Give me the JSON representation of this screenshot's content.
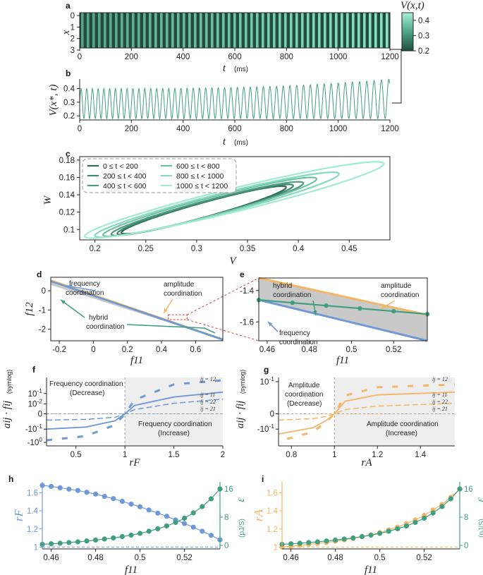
{
  "colors": {
    "green": "#3f9e7f",
    "blue": "#6f98d6",
    "orange": "#f5b566",
    "grey": "#c9c9c9",
    "red": "#e0393e"
  },
  "chart_data": [
    {
      "id": "a",
      "type": "heatmap",
      "panel_label": "a",
      "xlabel_sym": "t",
      "xlabel_unit": "(ms)",
      "ylabel": "x",
      "x_ticks": [
        "0",
        "200",
        "400",
        "600",
        "800",
        "1000",
        "1200"
      ],
      "y_ticks": [
        "0",
        "1",
        "2",
        "3"
      ],
      "colorbar_title": "V(x,t)",
      "colorbar_ticks": [
        "0.4",
        "0.3",
        "0.2"
      ],
      "xlim": [
        0,
        1200
      ],
      "ylim": [
        0,
        3
      ],
      "clim": [
        0.2,
        0.45
      ],
      "oscillation_cycles": 55
    },
    {
      "id": "b",
      "type": "line",
      "panel_label": "b",
      "xlabel_sym": "t",
      "xlabel_unit": "(ms)",
      "ylabel": "V(x*, t)",
      "x_ticks": [
        "0",
        "200",
        "400",
        "600",
        "800",
        "1000",
        "1200"
      ],
      "y_ticks": [
        "0.4",
        "0.3",
        "0.2"
      ],
      "xlim": [
        0,
        1200
      ],
      "ylim": [
        0.2,
        0.45
      ],
      "series": [
        {
          "name": "V(x*,t)",
          "cycles": 55,
          "min": 0.18,
          "max_start": 0.4,
          "max_end": 0.47
        }
      ]
    },
    {
      "id": "c",
      "type": "line",
      "panel_label": "c",
      "xlabel": "V",
      "ylabel": "W",
      "x_ticks": [
        "0.2",
        "0.25",
        "0.3",
        "0.35",
        "0.4",
        "0.45"
      ],
      "y_ticks": [
        "0.18",
        "0.16",
        "0.14",
        "0.12",
        "0.1"
      ],
      "xlim": [
        0.185,
        0.49
      ],
      "ylim": [
        0.088,
        0.184
      ],
      "legend": [
        "0 ≤ t < 200",
        "200 ≤ t < 400",
        "400 ≤ t < 600",
        "600 ≤ t < 800",
        "800 ≤ t < 1000",
        "1000 ≤ t < 1200"
      ],
      "series": [
        {
          "name": "0 ≤ t < 200",
          "color": "#2f6b55",
          "v_min": 0.226,
          "v_max": 0.388,
          "w_min": 0.095,
          "w_max": 0.15
        },
        {
          "name": "200 ≤ t < 400",
          "color": "#3f8a6c",
          "v_min": 0.222,
          "v_max": 0.395,
          "w_min": 0.094,
          "w_max": 0.152
        },
        {
          "name": "400 ≤ t < 600",
          "color": "#4f9b7c",
          "v_min": 0.216,
          "v_max": 0.405,
          "w_min": 0.093,
          "w_max": 0.155
        },
        {
          "name": "600 ≤ t < 800",
          "color": "#6cc2a2",
          "v_min": 0.208,
          "v_max": 0.418,
          "w_min": 0.092,
          "w_max": 0.16
        },
        {
          "name": "800 ≤ t < 1000",
          "color": "#86d9bb",
          "v_min": 0.2,
          "v_max": 0.44,
          "w_min": 0.091,
          "w_max": 0.166
        },
        {
          "name": "1000 ≤ t < 1200",
          "color": "#a0ecd0",
          "v_min": 0.19,
          "v_max": 0.484,
          "w_min": 0.09,
          "w_max": 0.178
        }
      ]
    },
    {
      "id": "d",
      "type": "line",
      "panel_label": "d",
      "xlabel": "f11",
      "ylabel": "f12",
      "x_ticks": [
        "-0.2",
        "0",
        "0.2",
        "0.4",
        "0.6"
      ],
      "y_ticks": [
        "0",
        "-1",
        "-2"
      ],
      "xlim": [
        -0.25,
        0.76
      ],
      "ylim": [
        -2.6,
        0.7
      ],
      "annotations": [
        "frequency coordination",
        "amplitude coordination",
        "hybrid coordination"
      ],
      "series": [
        {
          "name": "frequency",
          "x": [
            -0.25,
            0.76
          ],
          "y": [
            0.5,
            -2.55
          ]
        },
        {
          "name": "amplitude",
          "x": [
            -0.25,
            0.76
          ],
          "y": [
            0.55,
            -2.52
          ]
        },
        {
          "name": "hybrid",
          "x": [
            -0.25,
            0.76
          ],
          "y": [
            0.5,
            -2.53
          ]
        }
      ]
    },
    {
      "id": "e",
      "type": "line",
      "panel_label": "e",
      "xlabel": "f11",
      "ylabel": "",
      "x_ticks": [
        "0.46",
        "0.48",
        "0.5",
        "0.52"
      ],
      "y_ticks": [
        "-1.4",
        "-1.6"
      ],
      "xlim": [
        0.456,
        0.536
      ],
      "ylim": [
        -1.72,
        -1.32
      ],
      "annotations": [
        "hybrid coordination",
        "amplitude coordination",
        "frequency coordination"
      ],
      "series": [
        {
          "name": "amplitude",
          "x": [
            0.456,
            0.536
          ],
          "y": [
            -1.32,
            -1.555
          ]
        },
        {
          "name": "frequency",
          "x": [
            0.456,
            0.536
          ],
          "y": [
            -1.46,
            -1.72
          ]
        },
        {
          "name": "hybrid",
          "x": [
            0.456,
            0.472,
            0.488,
            0.504,
            0.52,
            0.536
          ],
          "y": [
            -1.46,
            -1.478,
            -1.496,
            -1.514,
            -1.532,
            -1.55
          ]
        }
      ]
    },
    {
      "id": "f",
      "type": "line",
      "panel_label": "f",
      "xlabel": "rF",
      "ylabel": "aij · fij",
      "ylabel_note": "(symlog)",
      "x_ticks": [
        "0.5",
        "1",
        "1.5",
        "2"
      ],
      "y_ticks": [
        "10^-1",
        "10^-2",
        "0",
        "-10^-1",
        "-10^0"
      ],
      "xlim": [
        0.2,
        2.0
      ],
      "annotations": [
        "Frequency coordination (Decrease)",
        "Frequency coordination (Increase)"
      ],
      "ij_labels": [
        "ij = 12",
        "ij = 11",
        "ij = 22",
        "ij = 21"
      ],
      "series": [
        {
          "name": "ij = 12",
          "style": "dash-bold",
          "x": [
            0.2,
            0.6,
            0.9,
            1.0,
            1.1,
            1.5,
            2.0
          ],
          "y_symlog": [
            -1.9,
            -1.6,
            -0.8,
            0,
            1.0,
            2.1,
            2.4
          ]
        },
        {
          "name": "ij = 11",
          "style": "solid",
          "x": [
            0.2,
            0.6,
            0.9,
            1.0,
            1.1,
            1.5,
            2.0
          ],
          "y_symlog": [
            -1.1,
            -0.95,
            -0.5,
            0,
            0.6,
            1.2,
            1.55
          ]
        },
        {
          "name": "ij = 22",
          "style": "dash",
          "x": [
            0.2,
            0.6,
            0.9,
            1.0,
            1.1,
            1.5,
            2.0
          ],
          "y_symlog": [
            -0.45,
            -0.4,
            -0.25,
            0,
            0.3,
            0.75,
            1.05
          ]
        },
        {
          "name": "ij = 21",
          "style": "dash-light",
          "x": [
            0.2,
            1.0,
            2.0
          ],
          "y_symlog": [
            0,
            0,
            0
          ]
        }
      ]
    },
    {
      "id": "g",
      "type": "line",
      "panel_label": "g",
      "xlabel": "rA",
      "ylabel": "aij · fij",
      "ylabel_note": "(symlog)",
      "x_ticks": [
        "0.8",
        "1",
        "1.2",
        "1.4"
      ],
      "y_ticks": [
        "10^-1",
        "0",
        "-10^-1"
      ],
      "xlim": [
        0.74,
        1.56
      ],
      "annotations": [
        "Amplitude coordination (Decrease)",
        "Amplitude coordination (Increase)"
      ],
      "ij_labels": [
        "ij = 12",
        "ij = 11",
        "ij = 22",
        "ij = 21"
      ],
      "series": [
        {
          "name": "ij = 12",
          "style": "dash-bold",
          "x": [
            0.78,
            0.9,
            0.96,
            1.0,
            1.05,
            1.2,
            1.56
          ],
          "y_symlog": [
            -1.8,
            -1.3,
            -0.6,
            0,
            1.3,
            1.9,
            2.1
          ]
        },
        {
          "name": "ij = 11",
          "style": "solid",
          "x": [
            0.74,
            0.9,
            0.96,
            1.0,
            1.05,
            1.2,
            1.56
          ],
          "y_symlog": [
            -1.45,
            -1.0,
            -0.5,
            0,
            0.9,
            1.35,
            1.55
          ]
        },
        {
          "name": "ij = 22",
          "style": "dash",
          "x": [
            0.74,
            0.9,
            0.96,
            1.0,
            1.05,
            1.2,
            1.56
          ],
          "y_symlog": [
            -0.45,
            -0.35,
            -0.2,
            0,
            0.3,
            0.55,
            0.75
          ]
        },
        {
          "name": "ij = 21",
          "style": "dash-light",
          "x": [
            0.74,
            1.0,
            1.56
          ],
          "y_symlog": [
            0,
            0,
            0
          ]
        }
      ]
    },
    {
      "id": "h",
      "type": "scatter",
      "panel_label": "h",
      "xlabel": "f11",
      "ylabel_left": "rF",
      "ylabel_right": "ε",
      "ylabel_right_unit": "(pJ/S)",
      "x_ticks": [
        "0.46",
        "0.48",
        "0.5",
        "0.52"
      ],
      "y_ticks_left": [
        "1.6",
        "1.4",
        "1.2",
        "1"
      ],
      "y_ticks_right": [
        "16",
        "8",
        "0"
      ],
      "xlim": [
        0.456,
        0.536
      ],
      "ylim_left": [
        0.98,
        1.72
      ],
      "ylim_right": [
        -1,
        18
      ],
      "series": [
        {
          "name": "rF",
          "axis": "left",
          "x": [
            0.456,
            0.46,
            0.464,
            0.468,
            0.472,
            0.476,
            0.48,
            0.484,
            0.488,
            0.492,
            0.496,
            0.5,
            0.504,
            0.508,
            0.512,
            0.516,
            0.52,
            0.524,
            0.528,
            0.532,
            0.536
          ],
          "y": [
            1.68,
            1.67,
            1.655,
            1.64,
            1.625,
            1.605,
            1.585,
            1.56,
            1.535,
            1.505,
            1.475,
            1.445,
            1.41,
            1.375,
            1.34,
            1.3,
            1.26,
            1.22,
            1.175,
            1.13,
            1.08
          ]
        },
        {
          "name": "ε",
          "axis": "right",
          "x": [
            0.456,
            0.46,
            0.464,
            0.468,
            0.472,
            0.476,
            0.48,
            0.484,
            0.488,
            0.492,
            0.496,
            0.5,
            0.504,
            0.508,
            0.512,
            0.516,
            0.52,
            0.524,
            0.528,
            0.532,
            0.536
          ],
          "y": [
            0.3,
            0.45,
            0.6,
            0.8,
            1.0,
            1.25,
            1.5,
            1.8,
            2.1,
            2.5,
            2.9,
            3.4,
            4.0,
            4.7,
            5.5,
            6.5,
            7.7,
            9.2,
            11.0,
            13.2,
            16.0
          ]
        }
      ]
    },
    {
      "id": "i",
      "type": "scatter",
      "panel_label": "i",
      "xlabel": "f11",
      "ylabel_left": "rA",
      "ylabel_right": "ε",
      "ylabel_right_unit": "(pJ/S)",
      "x_ticks": [
        "0.46",
        "0.48",
        "0.5",
        "0.52"
      ],
      "y_ticks_left": [
        "1.6",
        "1.4",
        "1.2",
        "1"
      ],
      "y_ticks_right": [
        "16",
        "8",
        "0"
      ],
      "xlim": [
        0.456,
        0.536
      ],
      "ylim_left": [
        0.98,
        1.72
      ],
      "ylim_right": [
        -1,
        18
      ],
      "series": [
        {
          "name": "rA",
          "axis": "left",
          "x": [
            0.456,
            0.46,
            0.464,
            0.468,
            0.472,
            0.476,
            0.48,
            0.484,
            0.488,
            0.492,
            0.496,
            0.5,
            0.504,
            0.508,
            0.512,
            0.516,
            0.52,
            0.524,
            0.528,
            0.532,
            0.536
          ],
          "y": [
            1.0,
            1.01,
            1.02,
            1.03,
            1.04,
            1.05,
            1.065,
            1.08,
            1.095,
            1.115,
            1.135,
            1.16,
            1.19,
            1.22,
            1.26,
            1.3,
            1.35,
            1.41,
            1.47,
            1.55,
            1.64
          ]
        },
        {
          "name": "ε",
          "axis": "right",
          "x": [
            0.456,
            0.46,
            0.464,
            0.468,
            0.472,
            0.476,
            0.48,
            0.484,
            0.488,
            0.492,
            0.496,
            0.5,
            0.504,
            0.508,
            0.512,
            0.516,
            0.52,
            0.524,
            0.528,
            0.532,
            0.536
          ],
          "y": [
            0.3,
            0.45,
            0.6,
            0.8,
            1.0,
            1.25,
            1.5,
            1.8,
            2.1,
            2.5,
            2.9,
            3.4,
            4.0,
            4.7,
            5.5,
            6.5,
            7.7,
            9.2,
            11.0,
            13.2,
            16.0
          ]
        }
      ]
    }
  ]
}
